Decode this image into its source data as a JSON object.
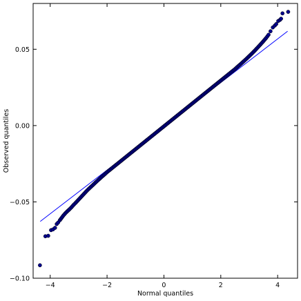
{
  "chart_data": {
    "type": "scatter",
    "title": "",
    "xlabel": "Normal quantiles",
    "ylabel": "Observed quantiles",
    "xlim": [
      -4.6,
      4.7
    ],
    "ylim": [
      -0.1,
      0.08
    ],
    "grid": false,
    "legend": "none",
    "x_ticks": [
      -4,
      -2,
      0,
      2,
      4
    ],
    "x_tick_labels": [
      "−4",
      "−2",
      "0",
      "2",
      "4"
    ],
    "y_ticks": [
      -0.1,
      -0.05,
      0.0,
      0.05
    ],
    "y_tick_labels": [
      "−0.10",
      "−0.05",
      "0.00",
      "0.05"
    ],
    "reference_line": {
      "x": [
        -4.35,
        4.35
      ],
      "y": [
        -0.0628,
        0.0618
      ],
      "color": "#0000ff"
    },
    "marker_color": "#00008b",
    "marker_edge_color": "#000000",
    "series": [
      {
        "points": [
          [
            -4.36,
            -0.0915
          ],
          [
            -4.17,
            -0.0725
          ],
          [
            -4.07,
            -0.0722
          ],
          [
            -3.97,
            -0.0685
          ],
          [
            -3.9,
            -0.068
          ],
          [
            -3.83,
            -0.067
          ],
          [
            -3.77,
            -0.0645
          ],
          [
            -3.72,
            -0.0635
          ],
          [
            -3.66,
            -0.062
          ],
          [
            -3.6,
            -0.0605
          ],
          [
            -3.54,
            -0.059
          ],
          [
            -3.47,
            -0.0575
          ],
          [
            -3.4,
            -0.0562
          ],
          [
            -3.33,
            -0.055
          ],
          [
            -3.25,
            -0.0535
          ],
          [
            -3.18,
            -0.052
          ],
          [
            -3.1,
            -0.0505
          ],
          [
            -3.0,
            -0.0485
          ],
          [
            -2.9,
            -0.0465
          ],
          [
            -2.8,
            -0.0445
          ],
          [
            -2.7,
            -0.0425
          ],
          [
            -2.6,
            -0.0407
          ],
          [
            -2.5,
            -0.039
          ],
          [
            -2.4,
            -0.0372
          ],
          [
            -2.3,
            -0.0355
          ],
          [
            -2.2,
            -0.0338
          ],
          [
            -2.1,
            -0.0322
          ],
          [
            -2.0,
            -0.0305
          ],
          [
            -1.9,
            -0.029
          ],
          [
            -1.8,
            -0.0275
          ],
          [
            -1.7,
            -0.026
          ],
          [
            -1.6,
            -0.0245
          ],
          [
            -1.5,
            -0.023
          ],
          [
            -1.4,
            -0.0215
          ],
          [
            -1.3,
            -0.02
          ],
          [
            -1.2,
            -0.0185
          ],
          [
            -1.1,
            -0.017
          ],
          [
            -1.0,
            -0.0155
          ],
          [
            -0.9,
            -0.014
          ],
          [
            -0.8,
            -0.0125
          ],
          [
            -0.7,
            -0.011
          ],
          [
            -0.6,
            -0.0095
          ],
          [
            -0.5,
            -0.008
          ],
          [
            -0.4,
            -0.0065
          ],
          [
            -0.3,
            -0.005
          ],
          [
            -0.2,
            -0.0035
          ],
          [
            -0.1,
            -0.002
          ],
          [
            0.0,
            -0.0005
          ],
          [
            0.1,
            0.001
          ],
          [
            0.2,
            0.0025
          ],
          [
            0.3,
            0.004
          ],
          [
            0.4,
            0.0055
          ],
          [
            0.5,
            0.007
          ],
          [
            0.6,
            0.0085
          ],
          [
            0.7,
            0.01
          ],
          [
            0.8,
            0.0115
          ],
          [
            0.9,
            0.013
          ],
          [
            1.0,
            0.0145
          ],
          [
            1.1,
            0.016
          ],
          [
            1.2,
            0.0175
          ],
          [
            1.3,
            0.019
          ],
          [
            1.4,
            0.0205
          ],
          [
            1.5,
            0.022
          ],
          [
            1.6,
            0.0235
          ],
          [
            1.7,
            0.025
          ],
          [
            1.8,
            0.0265
          ],
          [
            1.9,
            0.028
          ],
          [
            2.0,
            0.0295
          ],
          [
            2.1,
            0.031
          ],
          [
            2.2,
            0.0325
          ],
          [
            2.3,
            0.034
          ],
          [
            2.4,
            0.0355
          ],
          [
            2.5,
            0.037
          ],
          [
            2.6,
            0.0387
          ],
          [
            2.7,
            0.0403
          ],
          [
            2.8,
            0.042
          ],
          [
            2.9,
            0.0437
          ],
          [
            3.0,
            0.0455
          ],
          [
            3.1,
            0.0473
          ],
          [
            3.2,
            0.0492
          ],
          [
            3.3,
            0.0512
          ],
          [
            3.4,
            0.0532
          ],
          [
            3.5,
            0.0553
          ],
          [
            3.6,
            0.0575
          ],
          [
            3.68,
            0.0595
          ],
          [
            3.75,
            0.0618
          ],
          [
            3.83,
            0.0643
          ],
          [
            3.9,
            0.0655
          ],
          [
            3.95,
            0.0665
          ],
          [
            4.02,
            0.0685
          ],
          [
            4.08,
            0.0692
          ],
          [
            4.12,
            0.07
          ],
          [
            4.17,
            0.0735
          ],
          [
            4.37,
            0.0745
          ]
        ]
      }
    ]
  }
}
